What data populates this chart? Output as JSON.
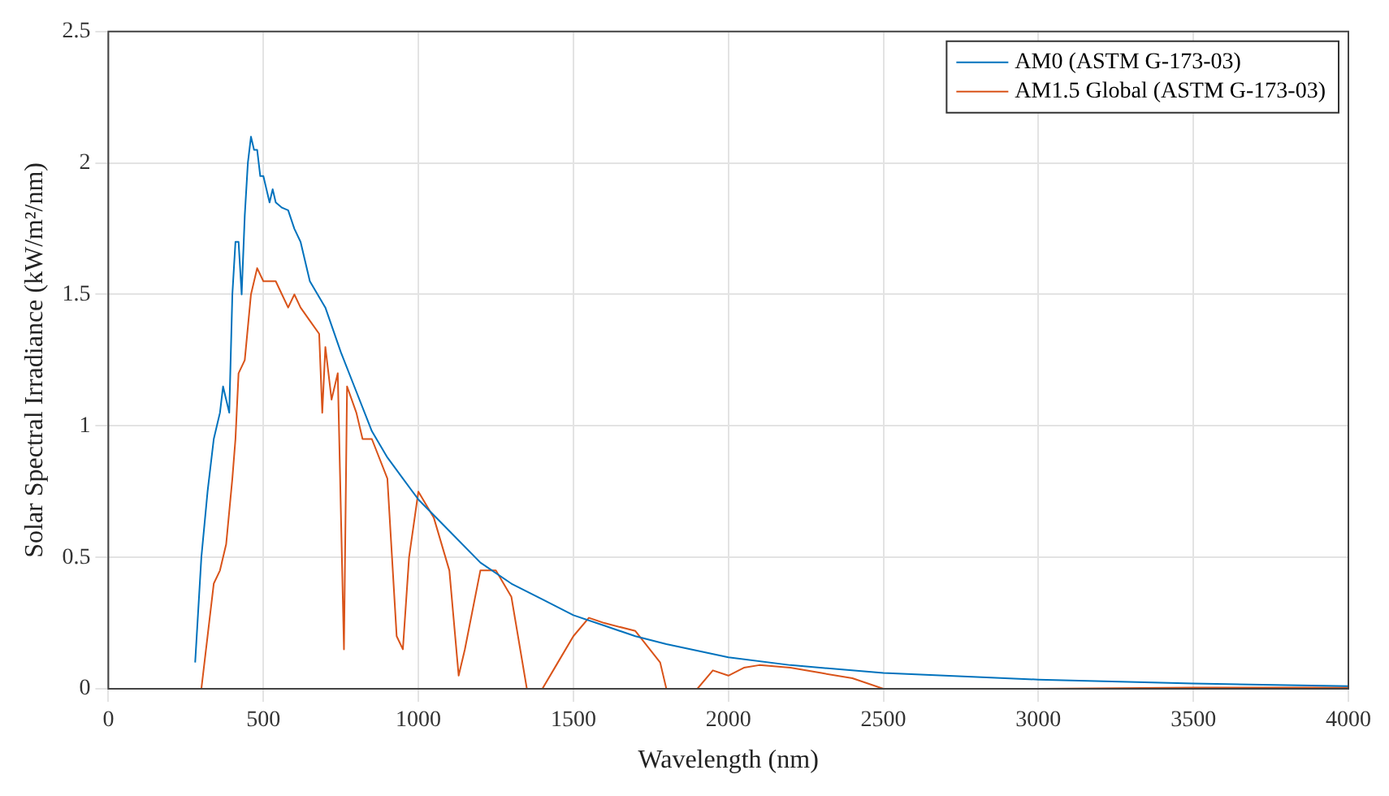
{
  "chart_data": {
    "type": "line",
    "xlabel": "Wavelength (nm)",
    "ylabel": "Solar Spectral Irradiance (kW/m²/nm)",
    "xlim": [
      0,
      4000
    ],
    "xticks": [
      0,
      500,
      1000,
      1500,
      2000,
      2500,
      3000,
      3500,
      4000
    ],
    "ylim": [
      0,
      2.5
    ],
    "yticks": [
      0,
      0.5,
      1,
      1.5,
      2,
      2.5
    ],
    "grid": true,
    "legend": "top right",
    "marker": "none",
    "line_style": "solid",
    "series": [
      {
        "name": "AM0 (ASTM G-173-03)",
        "color": "#0072bd",
        "x": [
          280,
          300,
          320,
          340,
          350,
          360,
          370,
          380,
          390,
          400,
          410,
          420,
          430,
          440,
          450,
          460,
          470,
          480,
          490,
          500,
          510,
          520,
          530,
          540,
          560,
          580,
          600,
          620,
          650,
          700,
          750,
          800,
          850,
          900,
          950,
          1000,
          1100,
          1200,
          1300,
          1400,
          1500,
          1600,
          1700,
          1800,
          2000,
          2200,
          2500,
          3000,
          3500,
          4000
        ],
        "values": [
          0.1,
          0.5,
          0.75,
          0.95,
          1.0,
          1.05,
          1.15,
          1.1,
          1.05,
          1.5,
          1.7,
          1.7,
          1.5,
          1.8,
          2.0,
          2.1,
          2.05,
          2.05,
          1.95,
          1.95,
          1.9,
          1.85,
          1.9,
          1.85,
          1.83,
          1.82,
          1.75,
          1.7,
          1.55,
          1.45,
          1.28,
          1.13,
          0.98,
          0.88,
          0.8,
          0.72,
          0.6,
          0.48,
          0.4,
          0.34,
          0.28,
          0.24,
          0.2,
          0.17,
          0.12,
          0.09,
          0.06,
          0.035,
          0.02,
          0.01
        ]
      },
      {
        "name": "AM1.5 Global (ASTM G-173-03)",
        "color": "#d95319",
        "x": [
          280,
          300,
          320,
          340,
          360,
          380,
          400,
          410,
          420,
          440,
          460,
          480,
          500,
          520,
          540,
          560,
          580,
          600,
          620,
          650,
          680,
          690,
          700,
          720,
          740,
          760,
          770,
          800,
          820,
          850,
          900,
          930,
          950,
          970,
          1000,
          1050,
          1100,
          1130,
          1150,
          1200,
          1250,
          1300,
          1350,
          1400,
          1450,
          1500,
          1550,
          1600,
          1700,
          1780,
          1800,
          1900,
          1950,
          2000,
          2050,
          2100,
          2200,
          2300,
          2400,
          2500,
          3000,
          3500,
          4000
        ],
        "values": [
          0,
          0,
          0.2,
          0.4,
          0.45,
          0.55,
          0.8,
          0.95,
          1.2,
          1.25,
          1.5,
          1.6,
          1.55,
          1.55,
          1.55,
          1.5,
          1.45,
          1.5,
          1.45,
          1.4,
          1.35,
          1.05,
          1.3,
          1.1,
          1.2,
          0.15,
          1.15,
          1.05,
          0.95,
          0.95,
          0.8,
          0.2,
          0.15,
          0.5,
          0.75,
          0.65,
          0.45,
          0.05,
          0.15,
          0.45,
          0.45,
          0.35,
          0,
          0,
          0.1,
          0.2,
          0.27,
          0.25,
          0.22,
          0.1,
          0,
          0,
          0.07,
          0.05,
          0.08,
          0.09,
          0.08,
          0.06,
          0.04,
          0,
          0,
          0.005,
          0.005
        ]
      }
    ]
  }
}
